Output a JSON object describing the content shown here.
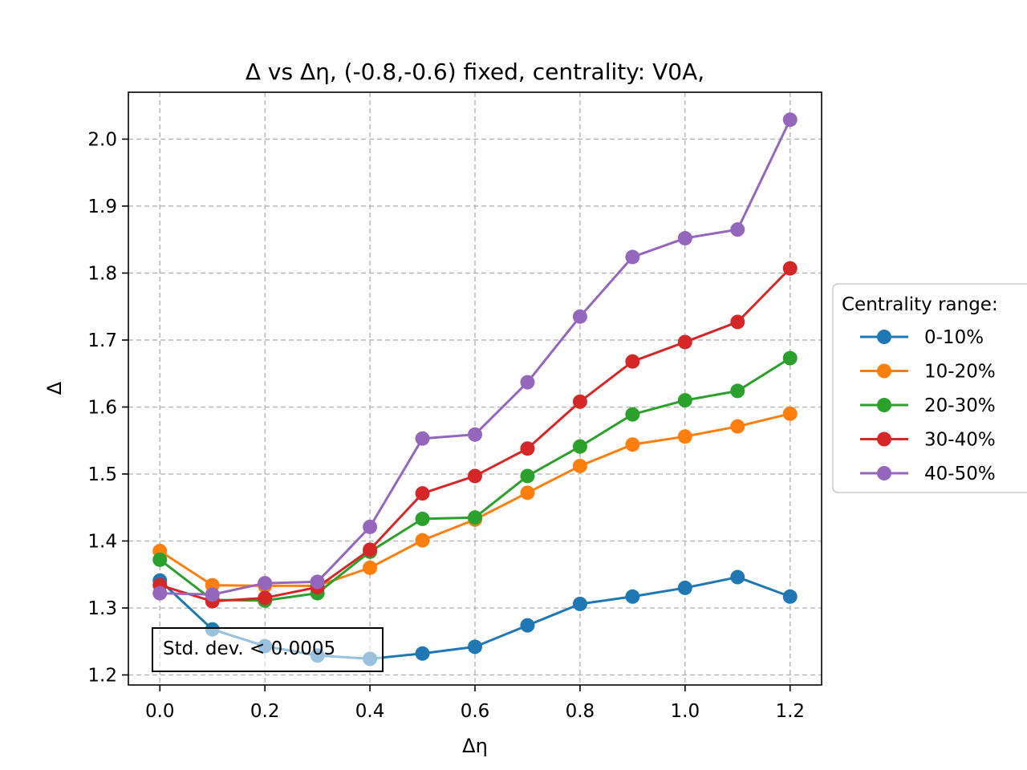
{
  "chart_data": {
    "type": "line",
    "title": "Δ vs Δη, (-0.8,-0.6) fixed, centrality: V0A,",
    "xlabel": "Δη",
    "ylabel": "Δ",
    "xlim": [
      -0.06,
      1.26
    ],
    "ylim": [
      1.185,
      2.07
    ],
    "xticks": [
      0.0,
      0.2,
      0.4,
      0.6,
      0.8,
      1.0,
      1.2
    ],
    "xtick_labels": [
      "0.0",
      "0.2",
      "0.4",
      "0.6",
      "0.8",
      "1.0",
      "1.2"
    ],
    "yticks": [
      1.2,
      1.3,
      1.4,
      1.5,
      1.6,
      1.7,
      1.8,
      1.9,
      2.0
    ],
    "ytick_labels": [
      "1.2",
      "1.3",
      "1.4",
      "1.5",
      "1.6",
      "1.7",
      "1.8",
      "1.9",
      "2.0"
    ],
    "grid": true,
    "legend_title": "Centrality range:",
    "legend_position": "right, outside axes",
    "annotation": "Std. dev. < 0.0005",
    "x": [
      0.0,
      0.1,
      0.2,
      0.3,
      0.4,
      0.5,
      0.6,
      0.7,
      0.8,
      0.9,
      1.0,
      1.1,
      1.2
    ],
    "series": [
      {
        "name": "0-10%",
        "color": "#1f77b4",
        "values": [
          1.341,
          1.268,
          1.243,
          1.229,
          1.224,
          1.232,
          1.242,
          1.274,
          1.306,
          1.317,
          1.33,
          1.346,
          1.317
        ]
      },
      {
        "name": "10-20%",
        "color": "#ff7f0e",
        "values": [
          1.385,
          1.334,
          1.333,
          1.333,
          1.36,
          1.401,
          1.432,
          1.472,
          1.512,
          1.544,
          1.556,
          1.571,
          1.59
        ]
      },
      {
        "name": "20-30%",
        "color": "#2ca02c",
        "values": [
          1.372,
          1.312,
          1.311,
          1.322,
          1.384,
          1.433,
          1.435,
          1.497,
          1.541,
          1.589,
          1.61,
          1.624,
          1.673
        ]
      },
      {
        "name": "30-40%",
        "color": "#d62728",
        "values": [
          1.334,
          1.31,
          1.315,
          1.331,
          1.387,
          1.471,
          1.497,
          1.538,
          1.608,
          1.668,
          1.697,
          1.727,
          1.807
        ]
      },
      {
        "name": "40-50%",
        "color": "#9467bd",
        "values": [
          1.322,
          1.32,
          1.337,
          1.339,
          1.421,
          1.553,
          1.559,
          1.637,
          1.735,
          1.824,
          1.852,
          1.865,
          2.029
        ]
      }
    ]
  }
}
